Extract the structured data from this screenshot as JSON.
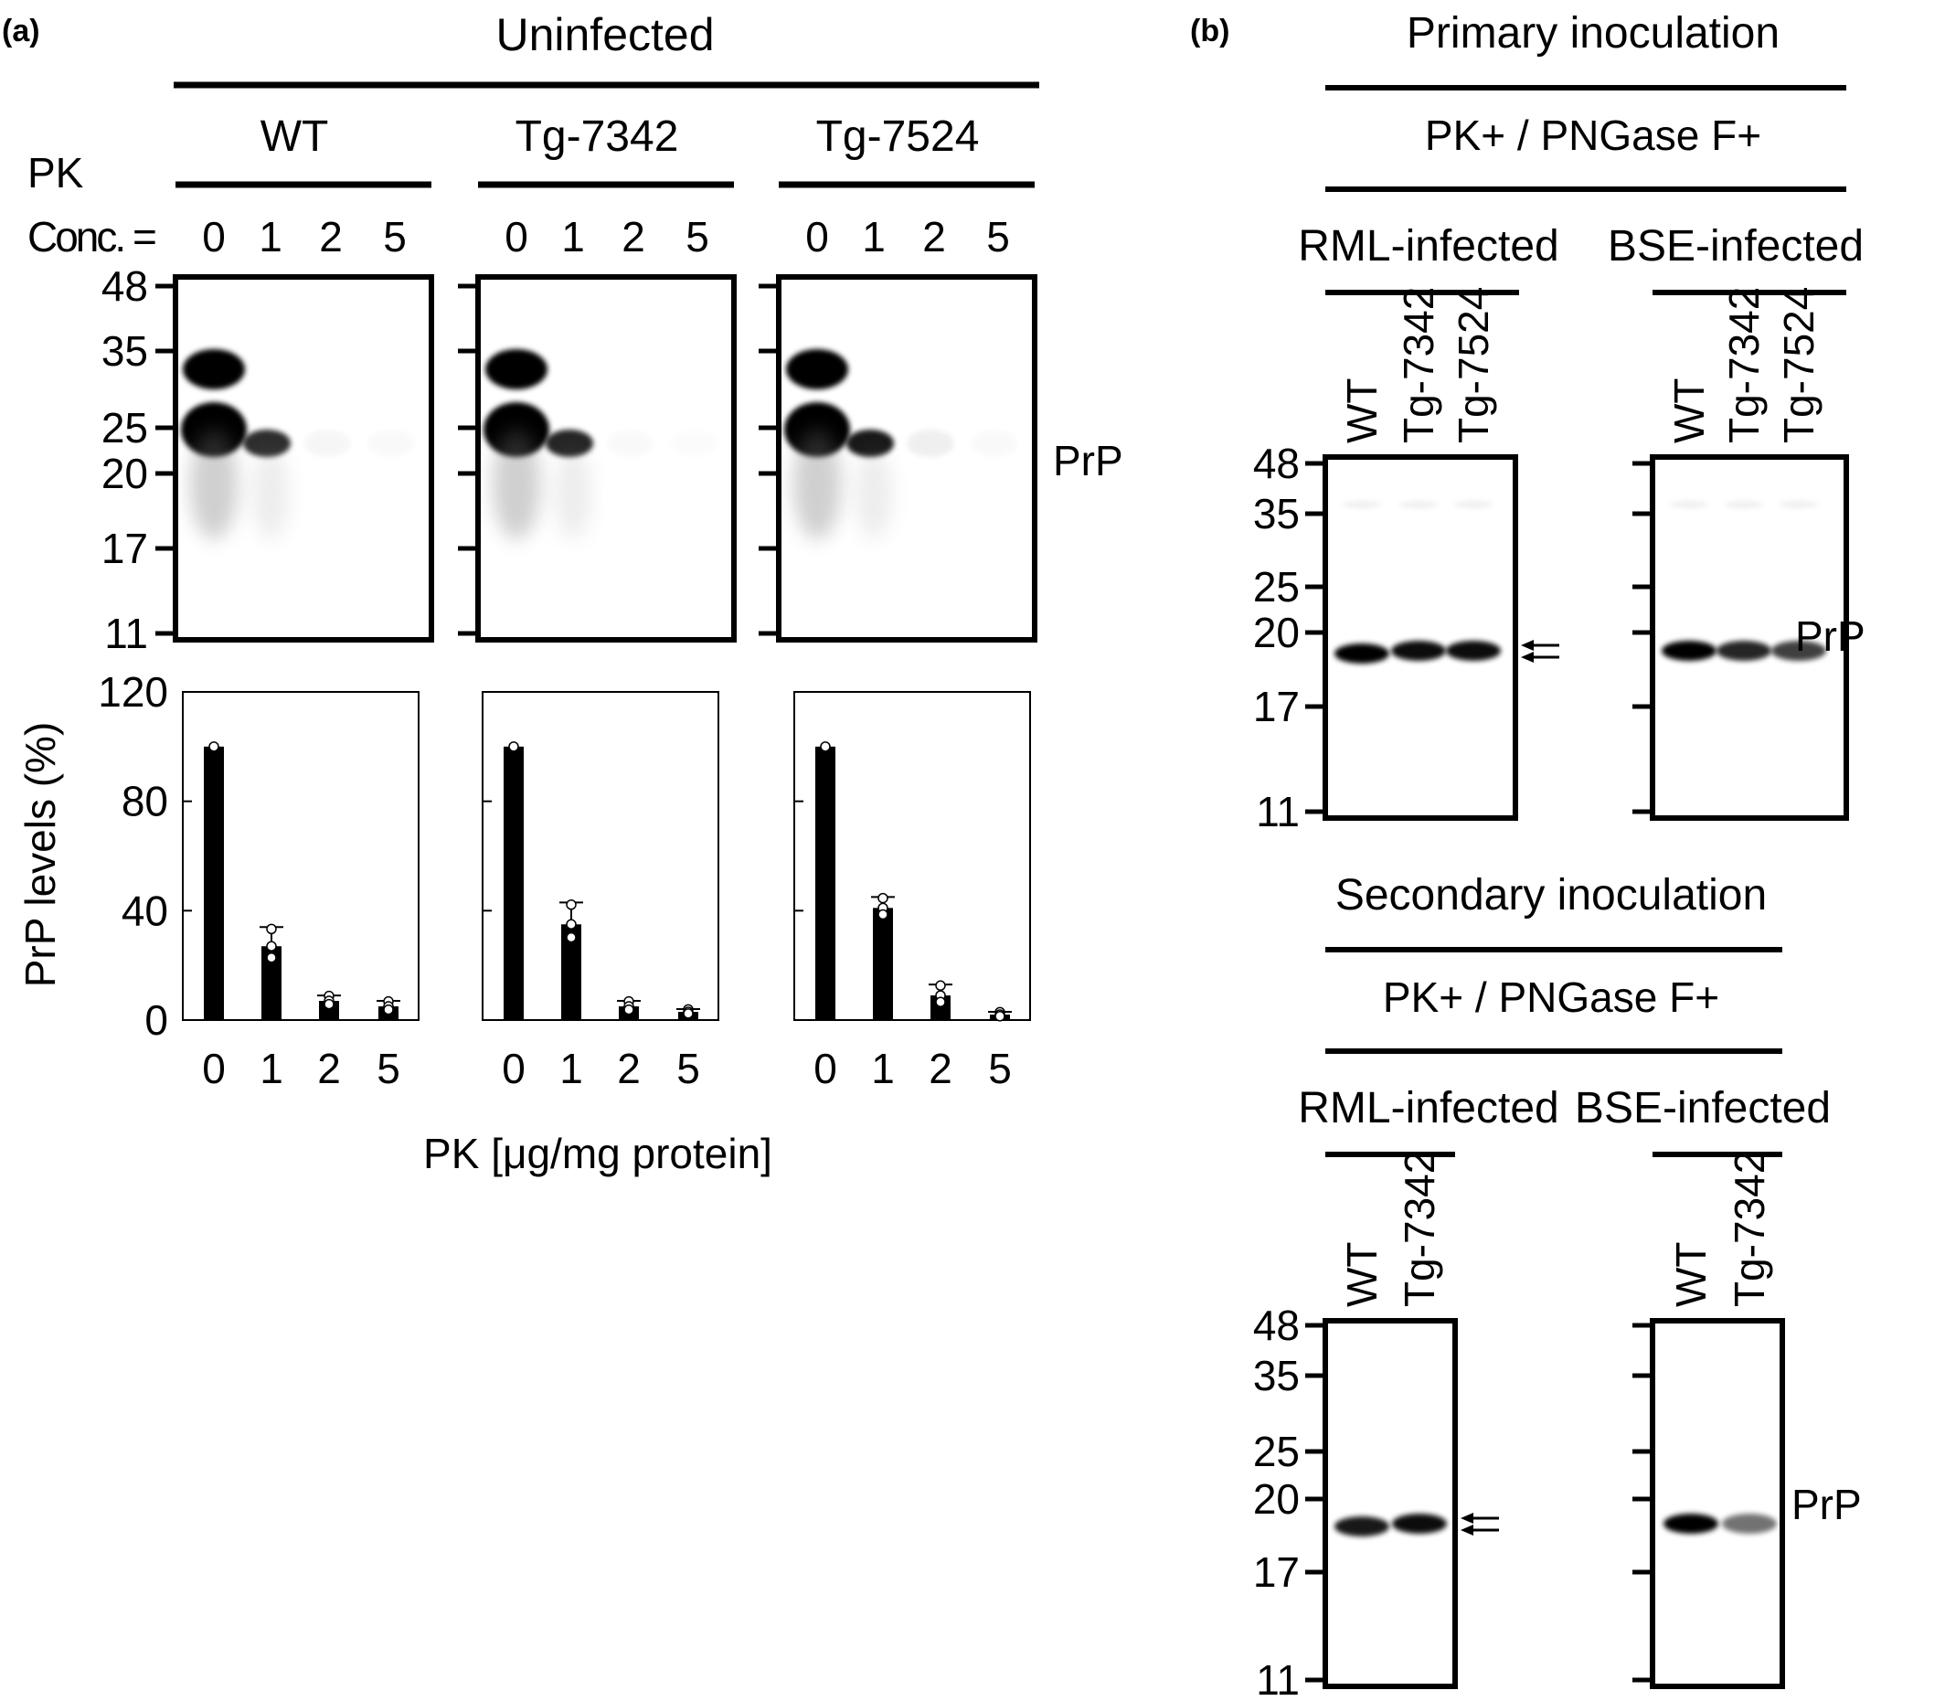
{
  "panel_a": {
    "label": "(a)",
    "group_label": "Uninfected",
    "pk_label": "PK",
    "conc_label": "Conc. =",
    "lanes": [
      "0",
      "1",
      "2",
      "5"
    ],
    "genotypes": [
      "WT",
      "Tg-7342",
      "Tg-7524"
    ],
    "mw_markers": [
      "48",
      "35",
      "25",
      "20",
      "17",
      "11"
    ],
    "band_label": "PrP",
    "bands": [
      [
        {
          "lane": "0",
          "intensity": 1.0
        },
        {
          "lane": "1",
          "intensity": 0.82
        },
        {
          "lane": "2",
          "intensity": 0.03
        },
        {
          "lane": "5",
          "intensity": 0.02
        }
      ],
      [
        {
          "lane": "0",
          "intensity": 1.0
        },
        {
          "lane": "1",
          "intensity": 0.85
        },
        {
          "lane": "2",
          "intensity": 0.02
        },
        {
          "lane": "5",
          "intensity": 0.01
        }
      ],
      [
        {
          "lane": "0",
          "intensity": 1.0
        },
        {
          "lane": "1",
          "intensity": 0.9
        },
        {
          "lane": "2",
          "intensity": 0.06
        },
        {
          "lane": "5",
          "intensity": 0.02
        }
      ]
    ]
  },
  "chart_data": {
    "type": "bar",
    "ylabel": "PrP levels (%)",
    "xlabel": "PK [μg/mg protein]",
    "ylim": [
      0,
      120
    ],
    "yticks": [
      "0",
      "40",
      "80",
      "120"
    ],
    "categories": [
      "0",
      "1",
      "2",
      "5"
    ],
    "series": [
      {
        "values": [
          100,
          27,
          7,
          5
        ],
        "errors": [
          0,
          7,
          2,
          2
        ]
      },
      {
        "values": [
          100,
          35,
          5,
          3
        ],
        "errors": [
          0,
          8,
          2,
          1
        ]
      },
      {
        "values": [
          100,
          41,
          9,
          2
        ],
        "errors": [
          0,
          4,
          4,
          1
        ]
      }
    ]
  },
  "panel_b": {
    "label": "(b)",
    "primary": {
      "title": "Primary inoculation",
      "treatment": "PK+ / PNGase F+",
      "groups": [
        {
          "title": "RML-infected",
          "lanes": [
            "WT",
            "Tg-7342",
            "Tg-7524"
          ],
          "intensities": [
            1.0,
            0.95,
            0.95
          ]
        },
        {
          "title": "BSE-infected",
          "lanes": [
            "WT",
            "Tg-7342",
            "Tg-7524"
          ],
          "intensities": [
            1.0,
            0.85,
            0.75
          ]
        }
      ]
    },
    "secondary": {
      "title": "Secondary inoculation",
      "treatment": "PK+ / PNGase F+",
      "groups": [
        {
          "title": "RML-infected",
          "lanes": [
            "WT",
            "Tg-7342"
          ],
          "intensities": [
            0.9,
            0.95
          ]
        },
        {
          "title": "BSE-infected",
          "lanes": [
            "WT",
            "Tg-7342"
          ],
          "intensities": [
            1.0,
            0.55
          ]
        }
      ]
    },
    "mw_markers": [
      "48",
      "35",
      "25",
      "20",
      "17",
      "11"
    ],
    "band_label": "PrP"
  }
}
